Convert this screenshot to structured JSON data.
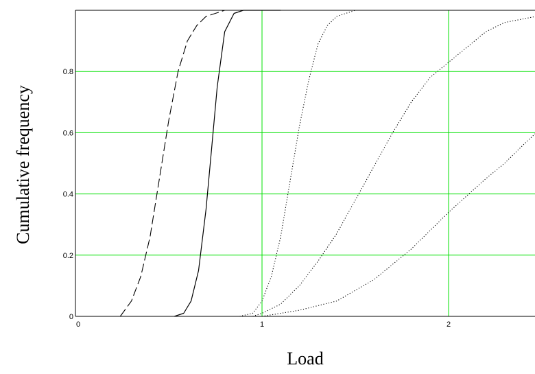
{
  "chart_data": {
    "type": "line",
    "title": "",
    "xlabel": "Load",
    "ylabel": "Cumulative frequency",
    "xlim": [
      0,
      2.47
    ],
    "ylim": [
      0,
      1.0
    ],
    "grid": true,
    "x_ticks": [
      0,
      1,
      2
    ],
    "x_tick_labels": [
      "0",
      "1",
      "2"
    ],
    "y_ticks": [
      0,
      0.2,
      0.4,
      0.6,
      0.8
    ],
    "y_tick_labels": [
      "0",
      "0.2",
      "0.4",
      "0.6",
      "0.8"
    ],
    "series": [
      {
        "line_style": "dashed",
        "x": [
          0.24,
          0.3,
          0.35,
          0.4,
          0.45,
          0.5,
          0.55,
          0.6,
          0.65,
          0.7,
          0.75,
          0.8,
          0.9,
          1.0,
          1.1
        ],
        "y": [
          0.0,
          0.05,
          0.13,
          0.26,
          0.45,
          0.64,
          0.8,
          0.9,
          0.95,
          0.98,
          0.99,
          1.0,
          1.0,
          1.0,
          1.0
        ]
      },
      {
        "line_style": "solid",
        "x": [
          0.53,
          0.58,
          0.62,
          0.66,
          0.7,
          0.73,
          0.76,
          0.8,
          0.85,
          0.9,
          1.0,
          1.1
        ],
        "y": [
          0.0,
          0.01,
          0.05,
          0.15,
          0.35,
          0.55,
          0.75,
          0.93,
          0.99,
          1.0,
          1.0,
          1.0
        ]
      },
      {
        "line_style": "dotted",
        "x": [
          0.88,
          0.95,
          1.0,
          1.05,
          1.1,
          1.15,
          1.2,
          1.25,
          1.3,
          1.35,
          1.4,
          1.5,
          1.6
        ],
        "y": [
          0.0,
          0.01,
          0.05,
          0.13,
          0.26,
          0.44,
          0.62,
          0.77,
          0.89,
          0.95,
          0.98,
          1.0,
          1.0
        ]
      },
      {
        "line_style": "dotted",
        "x": [
          0.95,
          1.0,
          1.1,
          1.2,
          1.3,
          1.4,
          1.5,
          1.6,
          1.7,
          1.8,
          1.9,
          2.0,
          2.1,
          2.2,
          2.3,
          2.47
        ],
        "y": [
          0.0,
          0.01,
          0.04,
          0.1,
          0.18,
          0.27,
          0.38,
          0.49,
          0.6,
          0.7,
          0.78,
          0.83,
          0.88,
          0.93,
          0.96,
          0.98
        ]
      },
      {
        "line_style": "dotted",
        "x": [
          1.0,
          1.2,
          1.4,
          1.6,
          1.8,
          2.0,
          2.2,
          2.3,
          2.4,
          2.47
        ],
        "y": [
          0.0,
          0.02,
          0.05,
          0.12,
          0.22,
          0.34,
          0.45,
          0.5,
          0.56,
          0.6
        ]
      }
    ]
  }
}
